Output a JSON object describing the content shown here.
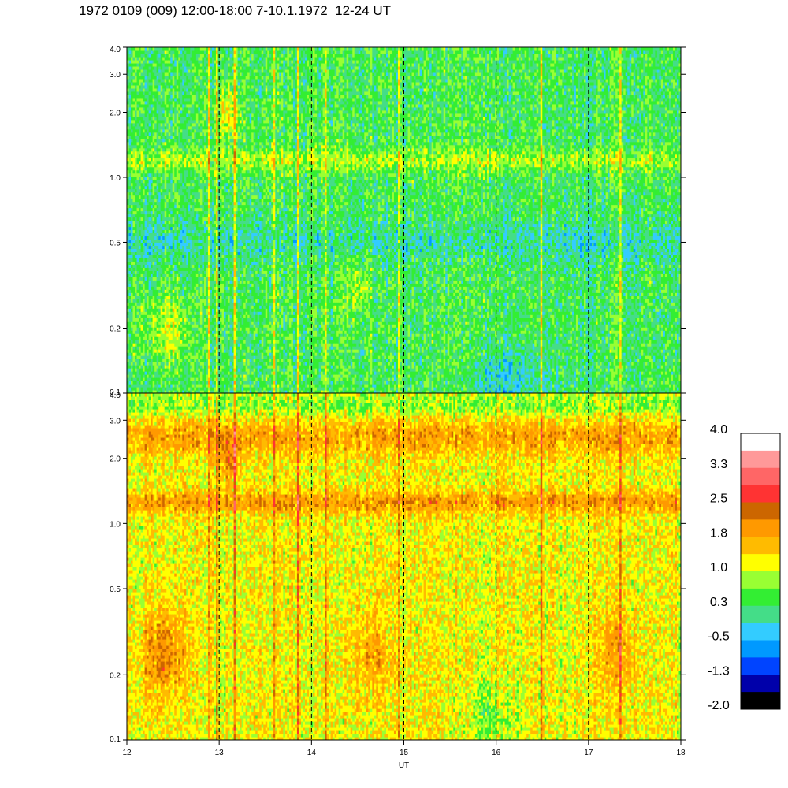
{
  "title": "1972 0109 (009) 12:00-18:00 7-10.1.1972  12-24 UT",
  "chart_data": {
    "type": "heatmap",
    "xlabel": "UT",
    "x_range": [
      12,
      18
    ],
    "x_ticks": [
      12,
      13,
      14,
      15,
      16,
      17,
      18
    ],
    "x_tick_labels": [
      "12",
      "13",
      "14",
      "15",
      "16",
      "17",
      "18"
    ],
    "dashed_lines_at": [
      13,
      14,
      15,
      16,
      17
    ],
    "y_scale": "log",
    "panels": [
      {
        "name": "upper",
        "y_range": [
          0.1,
          4.0
        ],
        "y_ticks": [
          0.1,
          0.2,
          0.5,
          1.0,
          2.0,
          3.0,
          4.0
        ],
        "y_tick_labels": [
          "0.1",
          "0.2",
          "0.5",
          "1.0",
          "2.0",
          "3.0",
          "4.0"
        ],
        "typical_level_range": [
          -0.5,
          1.0
        ]
      },
      {
        "name": "lower",
        "y_range": [
          0.1,
          4.0
        ],
        "y_ticks": [
          0.1,
          0.2,
          0.5,
          1.0,
          2.0,
          3.0,
          4.0
        ],
        "y_tick_labels": [
          "0.1",
          "0.2",
          "0.5",
          "1.0",
          "2.0",
          "3.0",
          "4.0"
        ],
        "typical_level_range": [
          0.3,
          2.5
        ]
      }
    ],
    "colorbar": {
      "range": [
        -2.0,
        4.0
      ],
      "tick_labels": [
        "4.0",
        "3.3",
        "2.5",
        "1.8",
        "1.0",
        "0.3",
        "-0.5",
        "-1.3",
        "-2.0"
      ],
      "colors_top_to_bottom": [
        "#ffffff",
        "#ff9999",
        "#ff6666",
        "#ff3333",
        "#cc6600",
        "#ff9900",
        "#ffbb00",
        "#ffff00",
        "#99ff33",
        "#33ee33",
        "#44dd88",
        "#33ccff",
        "#0099ff",
        "#0044ff",
        "#0000aa",
        "#000000"
      ]
    }
  }
}
